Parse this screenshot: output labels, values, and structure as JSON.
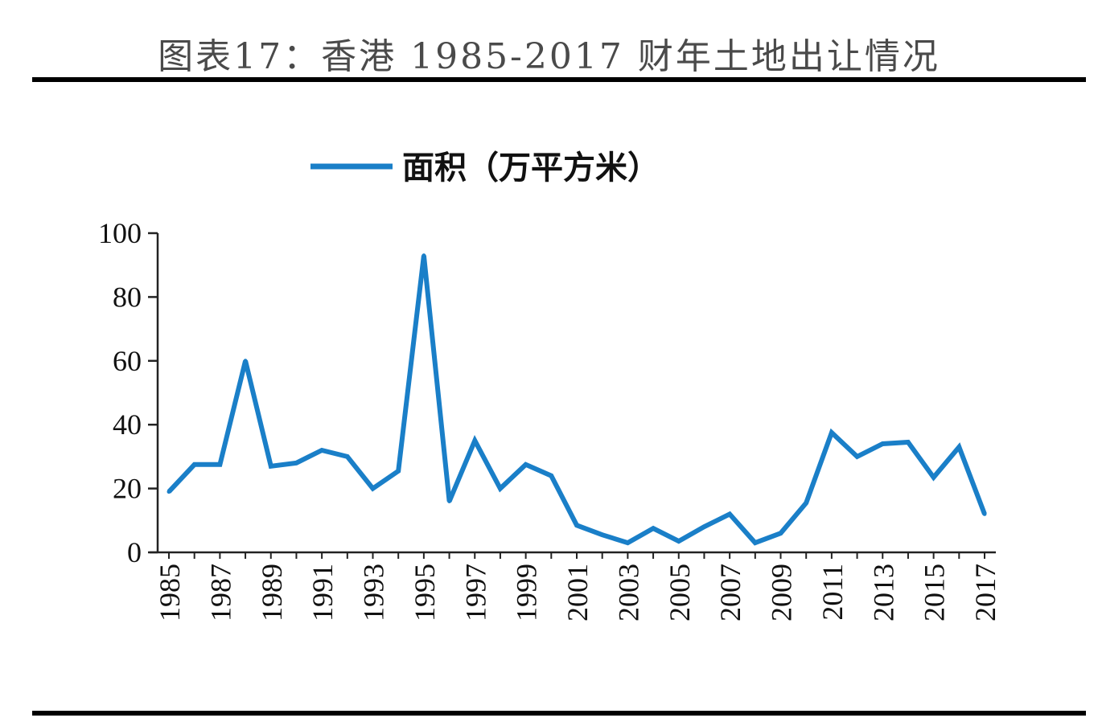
{
  "page_title": "图表17：香港 1985-2017 财年土地出让情况",
  "chart_data": {
    "type": "line",
    "title": "",
    "xlabel": "",
    "ylabel": "",
    "ylim": [
      0,
      100
    ],
    "y_ticks": [
      "0",
      "20",
      "40",
      "60",
      "80",
      "100"
    ],
    "x_tick_labels": [
      "1985",
      "1987",
      "1989",
      "1991",
      "1993",
      "1995",
      "1997",
      "1999",
      "2001",
      "2003",
      "2005",
      "2007",
      "2009",
      "2011",
      "2013",
      "2015",
      "2017"
    ],
    "grid": false,
    "legend_position": "top-center",
    "x": [
      1985,
      1986,
      1987,
      1988,
      1989,
      1990,
      1991,
      1992,
      1993,
      1994,
      1995,
      1996,
      1997,
      1998,
      1999,
      2000,
      2001,
      2002,
      2003,
      2004,
      2005,
      2006,
      2007,
      2008,
      2009,
      2010,
      2011,
      2012,
      2013,
      2014,
      2015,
      2016,
      2017
    ],
    "series": [
      {
        "name": "面积（万平方米）",
        "color": "#1a7fc8",
        "values": [
          19,
          27.5,
          27.5,
          60,
          27,
          28,
          32,
          30,
          20,
          25.5,
          93,
          16,
          35,
          20,
          27.5,
          24,
          8.5,
          5.5,
          3,
          7.5,
          3.5,
          8,
          12,
          3,
          6,
          15.5,
          37.5,
          30,
          34,
          34.5,
          23.5,
          33,
          12
        ]
      }
    ]
  }
}
